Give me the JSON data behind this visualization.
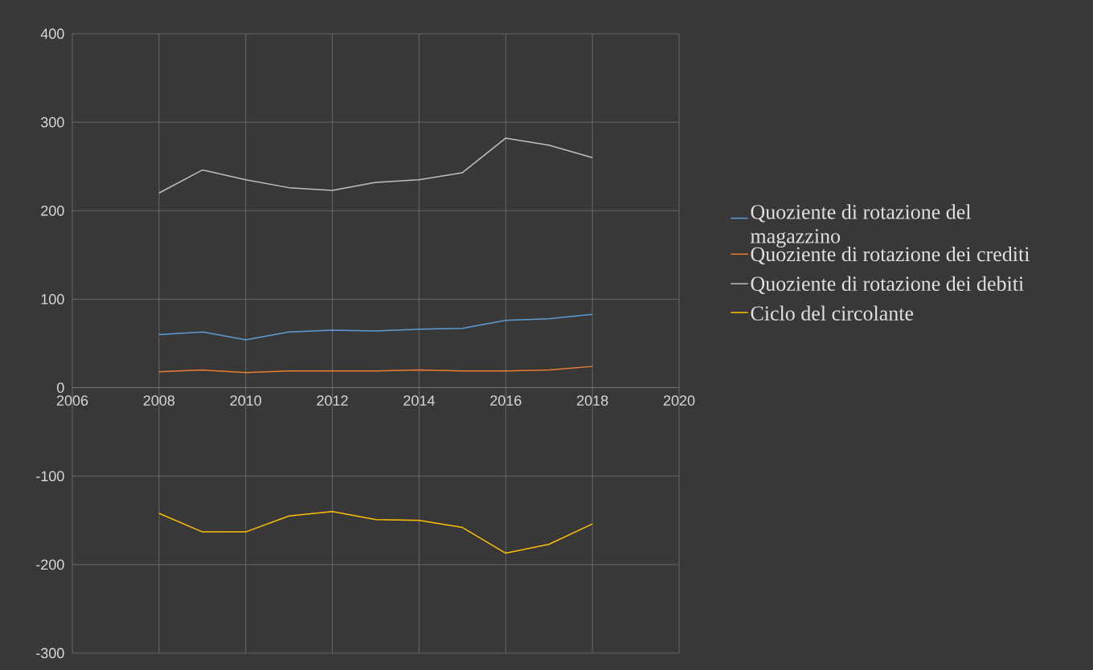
{
  "chart_data": {
    "type": "line",
    "x": [
      2008,
      2009,
      2010,
      2011,
      2012,
      2013,
      2014,
      2015,
      2016,
      2017,
      2018
    ],
    "series": [
      {
        "name": "Quoziente di rotazione del magazzino",
        "color": "#5b9bd5",
        "values": [
          60,
          63,
          54,
          63,
          65,
          64,
          66,
          67,
          76,
          78,
          83
        ]
      },
      {
        "name": "Quoziente di rotazione dei crediti",
        "color": "#ed7d31",
        "values": [
          18,
          20,
          17,
          19,
          19,
          19,
          20,
          19,
          19,
          20,
          24
        ]
      },
      {
        "name": "Quoziente di rotazione dei debiti",
        "color": "#bfbfbf",
        "values": [
          220,
          246,
          235,
          226,
          223,
          232,
          235,
          243,
          282,
          274,
          260
        ]
      },
      {
        "name": "Ciclo del circolante",
        "color": "#ffc000",
        "values": [
          -142,
          -163,
          -163,
          -145,
          -140,
          -149,
          -150,
          -158,
          -187,
          -177,
          -154
        ]
      }
    ],
    "xlim": [
      2006,
      2020
    ],
    "xticks": [
      2006,
      2008,
      2010,
      2012,
      2014,
      2016,
      2018,
      2020
    ],
    "ylim": [
      -300,
      400
    ],
    "yticks": [
      -300,
      -200,
      -100,
      0,
      100,
      200,
      300,
      400
    ],
    "grid": true,
    "legend": "right",
    "marker": "none",
    "line_style": "solid"
  }
}
